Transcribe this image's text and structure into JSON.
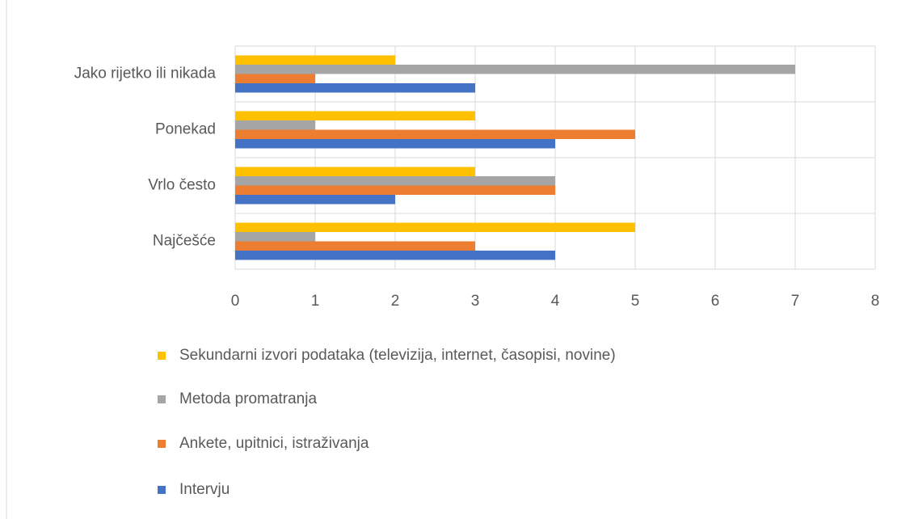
{
  "chart_data": {
    "type": "bar",
    "orientation": "horizontal",
    "categories": [
      "Jako rijetko ili nikada",
      "Ponekad",
      "Vrlo često",
      "Najčešće"
    ],
    "series": [
      {
        "name": "Sekundarni izvori podataka (televizija, internet, časopisi, novine)",
        "color": "#FFC000",
        "values": [
          2,
          3,
          3,
          5
        ]
      },
      {
        "name": "Metoda promatranja",
        "color": "#A5A5A5",
        "values": [
          7,
          1,
          4,
          1
        ]
      },
      {
        "name": "Ankete, upitnici, istraživanja",
        "color": "#ED7D31",
        "values": [
          1,
          5,
          4,
          3
        ]
      },
      {
        "name": "Intervju",
        "color": "#4472C4",
        "values": [
          3,
          4,
          2,
          4
        ]
      }
    ],
    "xlim": [
      0,
      8
    ],
    "xticks": [
      0,
      1,
      2,
      3,
      4,
      5,
      6,
      7,
      8
    ],
    "grid": true,
    "legend": "bottom"
  }
}
